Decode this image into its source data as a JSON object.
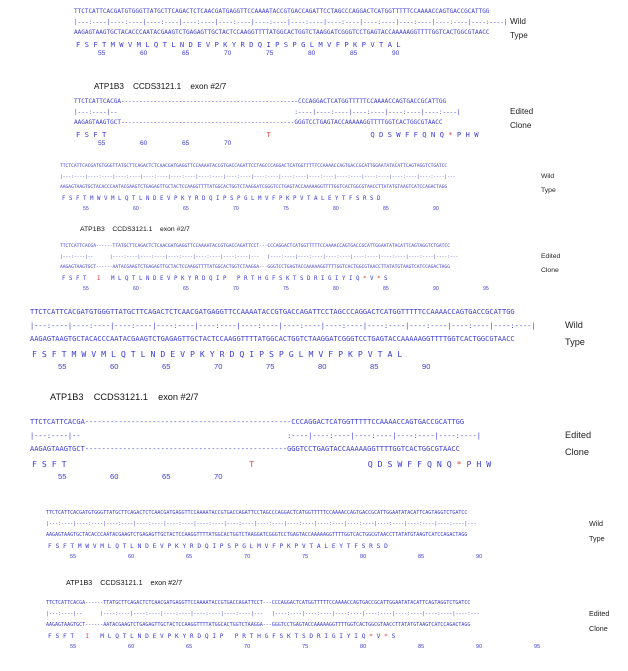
{
  "panels": [
    {
      "id": "p1",
      "wild_dna": "TTCTCATTCACGATGTGGGTTATGCTTCAGACTCTCAACGATGAGGTTCCAAAATACCGTGACCAGATTCCTAGCCCAGGACTCATGGTTTTTCCAAAACCAGTGACCGCATTGG",
      "wild_match": "|---:----|----:----|----:----|----:----|----:----|----:----|----:----|----:----|----:----|----:----|----:----|----:----|",
      "wild_comp": "AAGAGTAAGTGCTACACCCAATACGAAGTCTGAGAGTTGCTACTCCAAGGTTTTATGGCACTGGTCTAAGGATCGGGTCCTGAGTACCAAAAAGGTTTTGGTCACTGGCGTAACC",
      "wild_aa": "F S F T M W V M L Q T L N D E V P K Y R D Q I P S P G L M V F P K P V T A L",
      "wild_nums": "55  60  65  70  75  80  85  90",
      "label_top": "Wild",
      "label_bottom": "Type",
      "header": "ATP1B3    CCDS3121.1    exon #2/7",
      "edit_dna": "TTCTCATTCACGA-------------------------------------------------CCCAGGACTCATGGTTTTTCCAAAACCAGTGACCGCATTGG",
      "edit_match": "|---:----|--                                                 :----|----:----|----:----|----:----|----:----|",
      "edit_comp": "AAGAGTAAGTGCT------------------------------------------------GGGTCCTGAGTACCAAAAAGGTTTTGGTCACTGGCGTAACC",
      "edit_aa": "F S F T                                     T                       Q D S W F F Q N Q * P H W",
      "edit_nums": "55  60  65  70",
      "edit_label_top": "Edited",
      "edit_label_bottom": "Clone"
    },
    {
      "id": "p2",
      "wild_dna": "TTCTCATTCACGATGTGGGTTATGCTTCAGACTCTCAACGATGAGGTTCCAAAATACCGTGACCAGATTCCTAGCCCAGGACTCATGGTTTTTCCAAAACCAGTGACCGCATTGGAATATACATTCAGTAGGTCTGATCC",
      "wild_match": "|---:----|----:----|----:----|----:----|----:----|----:----|----:----|----:----|----:----|----:----|----:----|----:----|----:----|----:----|---",
      "wild_comp": "AAGAGTAAGTGCTACACCCAATACGAAGTCTGAGAGTTGCTACTCCAAGGTTTTATGGCACTGGTCTAAGGATCGGGTCCTGAGTACCAAAAAGGTTTTGGTCACTGGCGTAACCTTATATGTAAGTCATCCAGACTAGG",
      "wild_aa": "F S F T M W V M L Q T L N D E V P K Y R D Q I P S P G L M V F P K P V T A L E Y T F S R S D",
      "wild_nums": "55  60  65  70  75  80  85  90",
      "label_top": "Wild",
      "label_bottom": "Type",
      "header": "ATP1B3    CCDS3121.1    exon #2/7",
      "edit_dna": "TTCTCATTCACGA------TTATGCTTCAGACTCTCAACGATGAGGTTCCAAAATACCGTGACCAGATTCCT---CCCAGGACTCATGGTTTTTCCAAAACCAGTGACCGCATTGGAATATACATTCAGTAGGTCTGATCC",
      "edit_match": "|---:----|--      |----:----|----:----|----:----|----:----|----:----|---   |----:----|----:----|----:----|----:----|----:----|----:----|----:---",
      "edit_comp": "AAGAGTAAGTGCT------AATACGAAGTCTGAGAGTTGCTACTCCAAGGTTTTATGGCACTGGTCTAAGGA---GGGTCCTGAGTACCAAAAAGGTTTTGGTCACTGGCGTAACCTTATATGTAAGTCATCCAGACTAGG",
      "edit_aa": "F S F T   I   M L Q T L N D E V P K Y R D Q I P   P R T H G F S K T S D R I G I Y I Q * V * S",
      "edit_nums": "55  60  65  70  75  80  85  90  95",
      "edit_label_top": "Edited",
      "edit_label_bottom": "Clone"
    }
  ]
}
